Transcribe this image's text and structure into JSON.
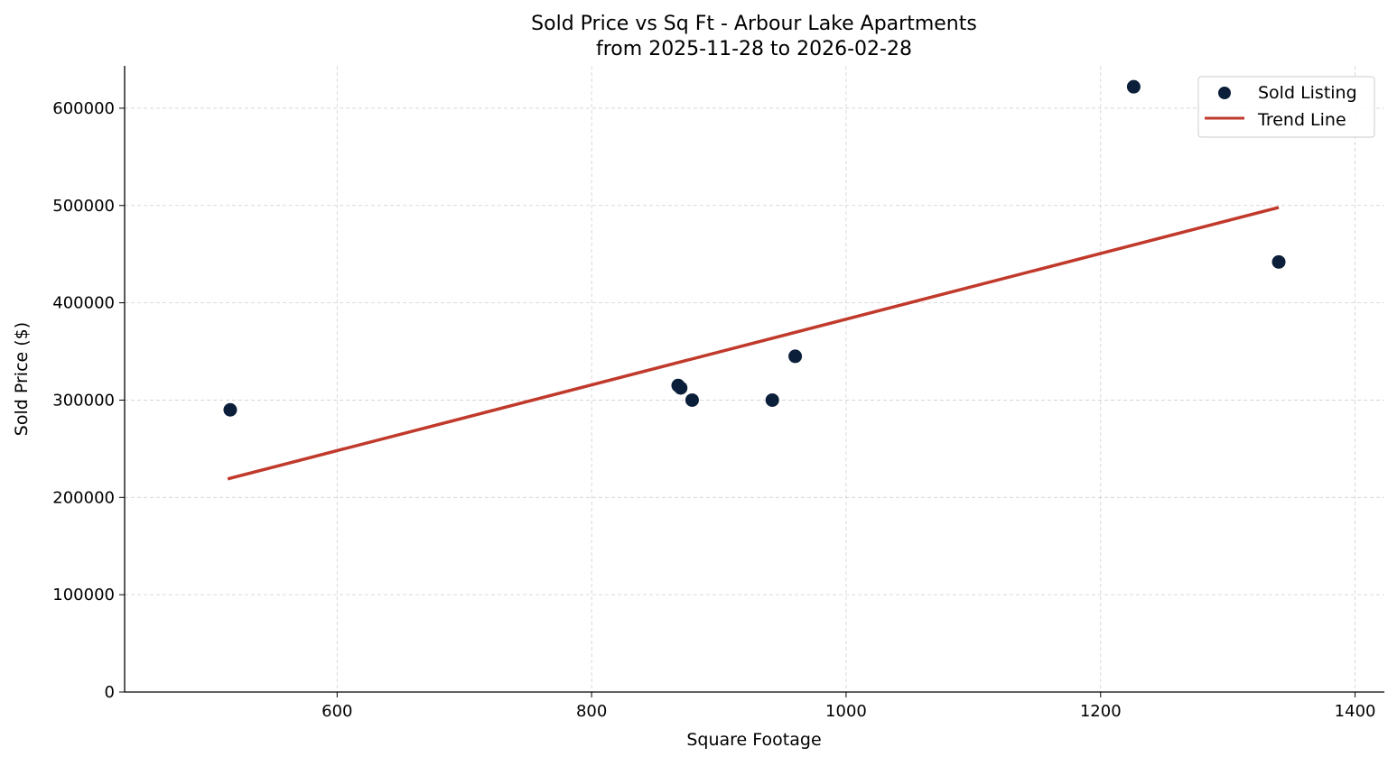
{
  "chart_data": {
    "type": "scatter",
    "title": "Sold Price vs Sq Ft - Arbour Lake Apartments",
    "subtitle": "from 2025-11-28 to 2026-02-28",
    "xlabel": "Square Footage",
    "ylabel": "Sold Price ($)",
    "xlim": [
      433,
      1423
    ],
    "ylim": [
      0,
      643500
    ],
    "xticks": [
      600,
      800,
      1000,
      1200,
      1400
    ],
    "yticks": [
      0,
      100000,
      200000,
      300000,
      400000,
      500000,
      600000
    ],
    "grid": true,
    "legend_placement": "top-right",
    "series": [
      {
        "name": "Sold Listing",
        "kind": "scatter",
        "color": "#0b1f3a",
        "points": [
          {
            "x": 516,
            "y": 290000
          },
          {
            "x": 868,
            "y": 315000
          },
          {
            "x": 870,
            "y": 312500
          },
          {
            "x": 879,
            "y": 300000
          },
          {
            "x": 942,
            "y": 300000
          },
          {
            "x": 960,
            "y": 345000
          },
          {
            "x": 1226,
            "y": 622000
          },
          {
            "x": 1340,
            "y": 442000
          }
        ]
      },
      {
        "name": "Trend Line",
        "kind": "line",
        "color": "#c0392b",
        "points": [
          {
            "x": 514,
            "y": 219000
          },
          {
            "x": 1340,
            "y": 498000
          }
        ]
      }
    ]
  }
}
